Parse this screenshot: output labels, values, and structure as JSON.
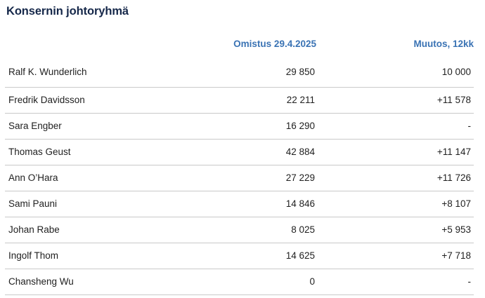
{
  "title": "Konsernin johtoryhmä",
  "table": {
    "headers": [
      "",
      "Omistus 29.4.2025",
      "Muutos, 12kk"
    ],
    "rows": [
      {
        "name": "Ralf K. Wunderlich",
        "ownership": "29 850",
        "change": "10 000"
      },
      {
        "name": "Fredrik Davidsson",
        "ownership": "22 211",
        "change": "+11 578"
      },
      {
        "name": "Sara Engber",
        "ownership": "16 290",
        "change": "-"
      },
      {
        "name": "Thomas Geust",
        "ownership": "42 884",
        "change": "+11 147"
      },
      {
        "name": "Ann O’Hara",
        "ownership": "27 229",
        "change": "+11 726"
      },
      {
        "name": "Sami Pauni",
        "ownership": "14 846",
        "change": "+8 107"
      },
      {
        "name": "Johan Rabe",
        "ownership": "8 025",
        "change": "+5 953"
      },
      {
        "name": "Ingolf Thom",
        "ownership": "14 625",
        "change": "+7 718"
      },
      {
        "name": "Chansheng Wu",
        "ownership": "0",
        "change": "-"
      }
    ]
  },
  "colors": {
    "title": "#16284a",
    "header": "#3a73b4",
    "text": "#1f1f1f",
    "divider": "#c9c9c9"
  }
}
